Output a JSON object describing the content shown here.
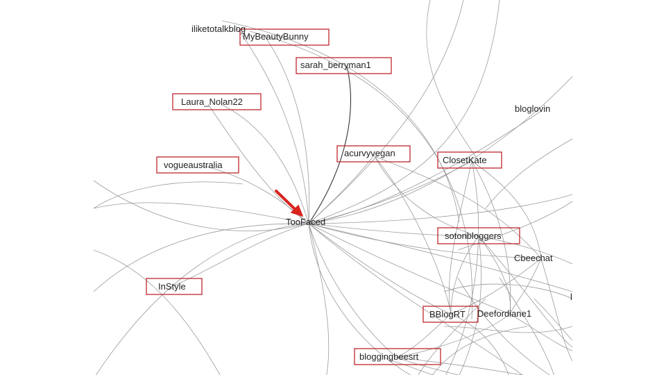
{
  "graph": {
    "focus_node": "TooFaced",
    "arrow_color": "#d9231e",
    "highlight_color": "#c0262d",
    "edge_color": "#9a9a9a",
    "nodes": [
      {
        "id": "iliketotalkblog",
        "label": "iliketotalkblog",
        "highlighted": false
      },
      {
        "id": "MyBeautyBunny",
        "label": "MyBeautyBunny",
        "highlighted": true
      },
      {
        "id": "sarah_berryman1",
        "label": "sarah_berryman1",
        "highlighted": true
      },
      {
        "id": "Laura_Nolan22",
        "label": "Laura_Nolan22",
        "highlighted": true
      },
      {
        "id": "bloglovin",
        "label": "bloglovin",
        "highlighted": false
      },
      {
        "id": "acurvyvegan",
        "label": "acurvyvegan",
        "highlighted": true
      },
      {
        "id": "ClosetKate",
        "label": "ClosetKate",
        "highlighted": true
      },
      {
        "id": "vogueaustralia",
        "label": "vogueaustralia",
        "highlighted": true
      },
      {
        "id": "TooFaced",
        "label": "TooFaced",
        "highlighted": false
      },
      {
        "id": "sotonbloggers",
        "label": "sotonbloggers",
        "highlighted": true
      },
      {
        "id": "Cbeechat",
        "label": "Cbeechat",
        "highlighted": false
      },
      {
        "id": "InStyle",
        "label": "InStyle",
        "highlighted": true
      },
      {
        "id": "BBlogRT",
        "label": "BBlogRT",
        "highlighted": true
      },
      {
        "id": "Deefordiane1",
        "label": "Deefordiane1",
        "highlighted": false
      },
      {
        "id": "bloggingbeesrt",
        "label": "bloggingbeesrt",
        "highlighted": true
      }
    ]
  }
}
